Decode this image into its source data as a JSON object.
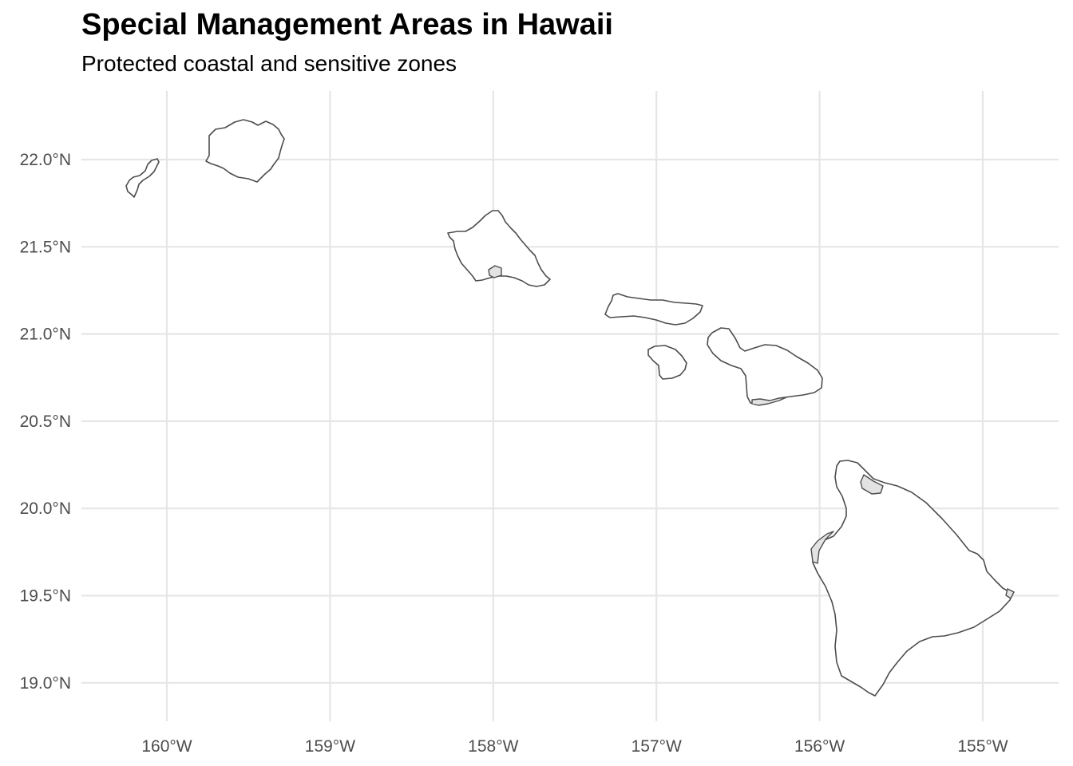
{
  "title": "Special Management Areas in Hawaii",
  "subtitle": "Protected coastal and sensitive zones",
  "colors": {
    "island_fill": "#ffffff",
    "island_outline": "#4d4d4d",
    "sma_fill": "#e3e3e3",
    "grid": "#e6e6e6",
    "tick_text": "#4d4d4d"
  },
  "map": {
    "projection": "geographic lat/lon",
    "grid": true,
    "legend": "none",
    "x_range_deg": [
      -160.5,
      -154.5
    ],
    "y_range_deg": [
      18.8,
      22.3
    ],
    "x_ticks": [
      {
        "value": -160,
        "label": "160°W"
      },
      {
        "value": -159,
        "label": "159°W"
      },
      {
        "value": -158,
        "label": "158°W"
      },
      {
        "value": -157,
        "label": "157°W"
      },
      {
        "value": -156,
        "label": "156°W"
      },
      {
        "value": -155,
        "label": "155°W"
      }
    ],
    "y_ticks": [
      {
        "value": 22.0,
        "label": "22.0°N"
      },
      {
        "value": 21.5,
        "label": "21.5°N"
      },
      {
        "value": 21.0,
        "label": "21.0°N"
      },
      {
        "value": 20.5,
        "label": "20.5°N"
      },
      {
        "value": 20.0,
        "label": "20.0°N"
      },
      {
        "value": 19.5,
        "label": "19.5°N"
      },
      {
        "value": 19.0,
        "label": "19.0°N"
      }
    ]
  }
}
